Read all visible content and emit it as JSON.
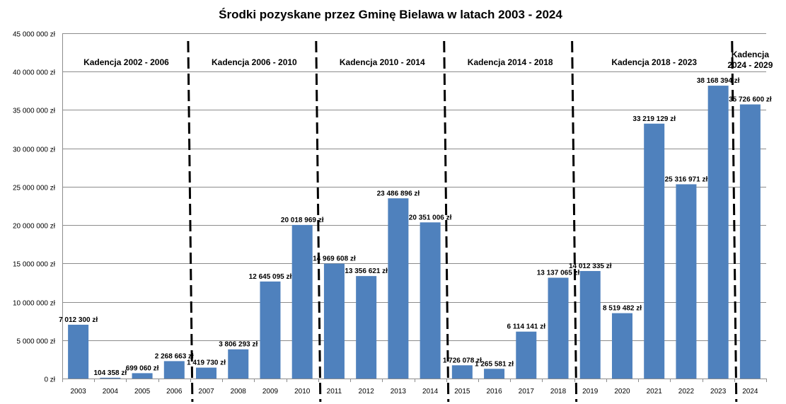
{
  "chart_data": {
    "type": "bar",
    "title": "Środki pozyskane przez Gminę  Bielawa w latach 2003 - 2024",
    "xlabel": "",
    "ylabel": "",
    "ylim": [
      0,
      45000000
    ],
    "ytick_values": [
      0,
      5000000,
      10000000,
      15000000,
      20000000,
      25000000,
      30000000,
      35000000,
      40000000,
      45000000
    ],
    "ytick_labels": [
      "0 zł",
      "5 000 000 zł",
      "10 000 000 zł",
      "15 000 000 zł",
      "20 000 000 zł",
      "25 000 000 zł",
      "30 000 000 zł",
      "35 000 000 zł",
      "40 000 000 zł",
      "45 000 000 zł"
    ],
    "grid": true,
    "bar_color": "#4f81bd",
    "categories": [
      "2003",
      "2004",
      "2005",
      "2006",
      "2007",
      "2008",
      "2009",
      "2010",
      "2011",
      "2012",
      "2013",
      "2014",
      "2015",
      "2016",
      "2017",
      "2018",
      "2019",
      "2020",
      "2021",
      "2022",
      "2023",
      "2024"
    ],
    "values": [
      7012300,
      104358,
      699060,
      2268663,
      1419730,
      3806293,
      12645095,
      20018969,
      14969608,
      13356621,
      23486896,
      20351006,
      1726078,
      1265581,
      6114141,
      13137065,
      14012335,
      8519482,
      33219129,
      25316971,
      38168394,
      35726600
    ],
    "value_labels": [
      "7 012 300 zł",
      "104 358 zł",
      "699 060 zł",
      "2 268 663 zł",
      "1 419 730 zł",
      "3 806 293 zł",
      "12 645 095 zł",
      "20 018 969 zł",
      "14 969 608 zł",
      "13 356 621 zł",
      "23 486 896 zł",
      "20 351 006 zł",
      "1 726 078 zł",
      "1 265 581 zł",
      "6 114 141 zł",
      "13 137 065 zł",
      "14 012 335 zł",
      "8 519 482 zł",
      "33 219 129 zł",
      "25 316 971 zł",
      "38 168 394 zł",
      "35 726 600 zł"
    ],
    "annotations": [
      {
        "lines": [
          "Kadencja 2002 - 2006"
        ],
        "from_index": 0,
        "to_index": 3
      },
      {
        "lines": [
          "Kadencja 2006 - 2010"
        ],
        "from_index": 4,
        "to_index": 7
      },
      {
        "lines": [
          "Kadencja 2010 - 2014"
        ],
        "from_index": 8,
        "to_index": 11
      },
      {
        "lines": [
          "Kadencja 2014 - 2018"
        ],
        "from_index": 12,
        "to_index": 15
      },
      {
        "lines": [
          "Kadencja 2018 - 2023"
        ],
        "from_index": 16,
        "to_index": 20
      },
      {
        "lines": [
          "Kadencja",
          "2024 - 2029"
        ],
        "from_index": 21,
        "to_index": 21
      }
    ],
    "term_dividers_between": [
      "2006|2007",
      "2010|2011",
      "2014|2015",
      "2018|2019",
      "2023|2024"
    ]
  }
}
